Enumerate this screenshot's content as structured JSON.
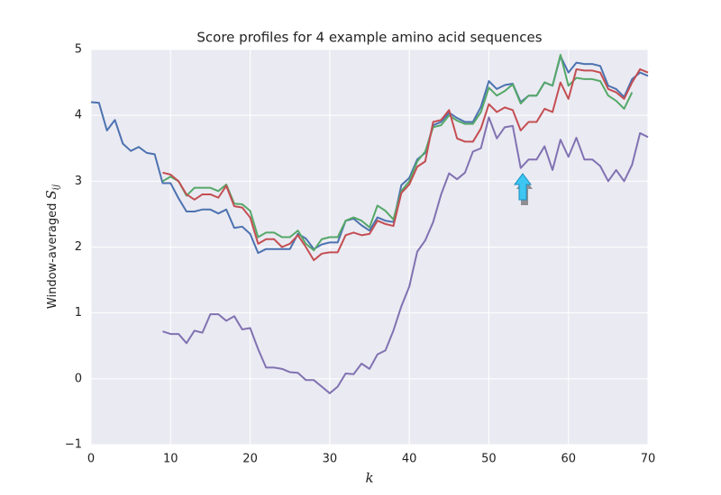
{
  "chart_data": {
    "type": "line",
    "title": "Score profiles for 4 example amino acid sequences",
    "xlabel": "k",
    "ylabel": {
      "text": "Window-averaged",
      "symbol": "S",
      "subscript": "ij"
    },
    "x": [
      0,
      1,
      2,
      3,
      4,
      5,
      6,
      7,
      8,
      9,
      10,
      11,
      12,
      13,
      14,
      15,
      16,
      17,
      18,
      19,
      20,
      21,
      22,
      23,
      24,
      25,
      26,
      27,
      28,
      29,
      30,
      31,
      32,
      33,
      34,
      35,
      36,
      37,
      38,
      39,
      40,
      41,
      42,
      43,
      44,
      45,
      46,
      47,
      48,
      49,
      50,
      51,
      52,
      53,
      54,
      55,
      56,
      57,
      58,
      59,
      60,
      61,
      62,
      63,
      64,
      65,
      66,
      67,
      68,
      69,
      70
    ],
    "series": [
      {
        "color": "#4c72b0",
        "values": [
          4.2,
          4.19,
          3.77,
          3.93,
          3.57,
          3.46,
          3.52,
          3.43,
          3.41,
          2.97,
          2.97,
          2.74,
          2.54,
          2.54,
          2.57,
          2.57,
          2.51,
          2.57,
          2.29,
          2.31,
          2.2,
          1.91,
          1.97,
          1.97,
          1.97,
          1.97,
          2.2,
          2.13,
          1.97,
          2.04,
          2.07,
          2.07,
          2.4,
          2.43,
          2.33,
          2.25,
          2.45,
          2.4,
          2.38,
          2.94,
          3.05,
          3.33,
          3.43,
          3.85,
          3.9,
          4.04,
          3.96,
          3.9,
          3.9,
          4.13,
          4.52,
          4.4,
          4.46,
          4.48,
          4.2,
          4.3,
          4.3,
          4.5,
          4.45,
          4.9,
          4.65,
          4.8,
          4.78,
          4.78,
          4.75,
          4.45,
          4.4,
          4.28,
          4.55,
          4.65,
          4.6
        ]
      },
      {
        "color": "#55a868",
        "values": [
          null,
          null,
          null,
          null,
          null,
          null,
          null,
          null,
          null,
          3.0,
          3.07,
          3.0,
          2.78,
          2.9,
          2.9,
          2.9,
          2.85,
          2.95,
          2.66,
          2.65,
          2.55,
          2.15,
          2.22,
          2.22,
          2.15,
          2.15,
          2.25,
          2.05,
          1.95,
          2.12,
          2.15,
          2.15,
          2.4,
          2.45,
          2.4,
          2.3,
          2.63,
          2.55,
          2.42,
          2.85,
          3.0,
          3.3,
          3.45,
          3.82,
          3.85,
          4.0,
          3.92,
          3.87,
          3.87,
          4.05,
          4.42,
          4.3,
          4.37,
          4.47,
          4.18,
          4.3,
          4.3,
          4.5,
          4.45,
          4.92,
          4.45,
          4.57,
          4.55,
          4.55,
          4.52,
          4.3,
          4.22,
          4.1,
          4.35,
          null,
          null
        ]
      },
      {
        "color": "#c44e52",
        "values": [
          null,
          null,
          null,
          null,
          null,
          null,
          null,
          null,
          null,
          3.13,
          3.1,
          3.0,
          2.8,
          2.72,
          2.8,
          2.8,
          2.75,
          2.93,
          2.62,
          2.6,
          2.45,
          2.05,
          2.12,
          2.12,
          2.0,
          2.05,
          2.18,
          2.0,
          1.8,
          1.9,
          1.92,
          1.92,
          2.18,
          2.22,
          2.18,
          2.2,
          2.4,
          2.35,
          2.32,
          2.82,
          2.95,
          3.22,
          3.3,
          3.9,
          3.93,
          4.08,
          3.65,
          3.6,
          3.6,
          3.8,
          4.17,
          4.05,
          4.12,
          4.08,
          3.77,
          3.9,
          3.9,
          4.1,
          4.05,
          4.5,
          4.25,
          4.7,
          4.68,
          4.68,
          4.65,
          4.4,
          4.35,
          4.25,
          4.5,
          4.7,
          4.65
        ]
      },
      {
        "color": "#8172b2",
        "values": [
          null,
          null,
          null,
          null,
          null,
          null,
          null,
          null,
          null,
          0.72,
          0.68,
          0.68,
          0.54,
          0.73,
          0.7,
          0.98,
          0.98,
          0.88,
          0.95,
          0.75,
          0.77,
          0.45,
          0.17,
          0.17,
          0.15,
          0.1,
          0.09,
          -0.02,
          -0.02,
          -0.12,
          -0.22,
          -0.12,
          0.08,
          0.07,
          0.23,
          0.15,
          0.37,
          0.43,
          0.73,
          1.1,
          1.4,
          1.93,
          2.1,
          2.38,
          2.8,
          3.12,
          3.03,
          3.13,
          3.45,
          3.5,
          3.97,
          3.65,
          3.82,
          3.84,
          3.2,
          3.33,
          3.33,
          3.53,
          3.17,
          3.63,
          3.37,
          3.66,
          3.33,
          3.33,
          3.23,
          3.0,
          3.17,
          3.0,
          3.25,
          3.73,
          3.67
        ]
      }
    ],
    "xlim": [
      0,
      70
    ],
    "xticks": [
      0,
      10,
      20,
      30,
      40,
      50,
      60,
      70
    ],
    "ylim": [
      -1,
      5
    ],
    "yticks": [
      {
        "value": -1,
        "label": "−1"
      },
      0,
      1,
      2,
      3,
      4,
      5
    ],
    "grid": true
  }
}
